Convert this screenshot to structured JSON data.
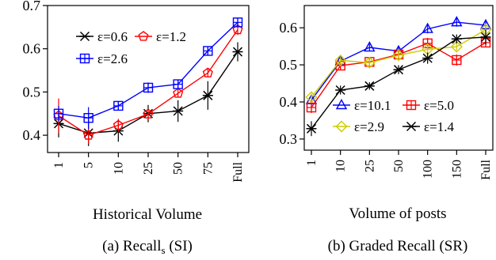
{
  "chart_data": [
    {
      "type": "line",
      "categories": [
        "1",
        "5",
        "10",
        "25",
        "50",
        "75",
        "Full"
      ],
      "xlabel": "Historical Volume",
      "caption": "(a) Recall",
      "caption_sub": "s",
      "caption_suffix": " (SI)",
      "ylim": [
        0.36,
        0.7
      ],
      "yticks": [
        0.4,
        0.5,
        0.6,
        0.7
      ],
      "yticklabels": [
        "0.4",
        "0.5",
        "0.6",
        "0.7"
      ],
      "legend_position": "top-left",
      "series": [
        {
          "name": "ε=0.6",
          "color": "#000000",
          "marker": "star",
          "values": [
            0.427,
            0.405,
            0.41,
            0.45,
            0.456,
            0.492,
            0.593
          ],
          "err": [
            0.032,
            0.03,
            0.025,
            0.02,
            0.025,
            0.033,
            0.022
          ]
        },
        {
          "name": "ε=1.2",
          "color": "#ff0000",
          "marker": "pentagon",
          "values": [
            0.445,
            0.4,
            0.423,
            0.449,
            0.497,
            0.544,
            0.644
          ],
          "err": [
            0.04,
            0.02,
            0.015,
            0.012,
            0.01,
            0.01,
            0.012
          ]
        },
        {
          "name": "ε=2.6",
          "color": "#0000ff",
          "marker": "square",
          "values": [
            0.45,
            0.44,
            0.468,
            0.51,
            0.518,
            0.595,
            0.661
          ],
          "err": [
            0.018,
            0.025,
            0.01,
            0.012,
            0.01,
            0.01,
            0.01
          ]
        }
      ]
    },
    {
      "type": "line",
      "categories": [
        "1",
        "10",
        "25",
        "50",
        "100",
        "150",
        "Full"
      ],
      "xlabel": "Volume of posts",
      "caption": "(b) Graded Recall (SR)",
      "caption_sub": "",
      "caption_suffix": "",
      "ylim": [
        0.27,
        0.66
      ],
      "yticks": [
        0.3,
        0.4,
        0.5,
        0.6
      ],
      "yticklabels": [
        "0.3",
        "0.4",
        "0.5",
        "0.6"
      ],
      "legend_position": "bottom-right",
      "series": [
        {
          "name": "ε=10.1",
          "color": "#0000ff",
          "marker": "triangle",
          "values": [
            0.405,
            0.51,
            0.547,
            0.537,
            0.597,
            0.615,
            0.607
          ],
          "err": [
            0.012,
            0.01,
            0.01,
            0.01,
            0.012,
            0.012,
            0.015
          ]
        },
        {
          "name": "ε=5.0",
          "color": "#ff0000",
          "marker": "square",
          "values": [
            0.385,
            0.498,
            0.508,
            0.528,
            0.558,
            0.513,
            0.56
          ],
          "err": [
            0.015,
            0.012,
            0.01,
            0.01,
            0.015,
            0.015,
            0.01
          ]
        },
        {
          "name": "ε=2.9",
          "color": "#cccc00",
          "marker": "diamond",
          "values": [
            0.413,
            0.512,
            0.506,
            0.526,
            0.542,
            0.549,
            0.595
          ],
          "err": [
            0.01,
            0.01,
            0.01,
            0.01,
            0.01,
            0.01,
            0.01
          ]
        },
        {
          "name": "ε=1.4",
          "color": "#000000",
          "marker": "star",
          "values": [
            0.328,
            0.432,
            0.443,
            0.487,
            0.518,
            0.57,
            0.575
          ],
          "err": [
            0.02,
            0.012,
            0.01,
            0.012,
            0.015,
            0.012,
            0.02
          ]
        }
      ]
    }
  ]
}
